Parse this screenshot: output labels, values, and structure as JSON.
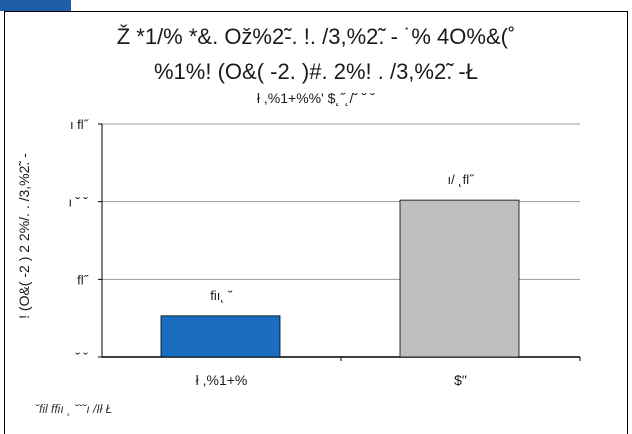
{
  "header": {
    "tab_color": "#1f5fa8"
  },
  "chart_data": {
    "type": "bar",
    "title": "Ž *1/%  *&. Ož%2̃-. !. /3,%2̃. - ˙% 4O%&(˚",
    "subtitle": "%1%! (O&( -2. )#. 2%! . /3,%2̃. -Ł",
    "subtitle2": "ł ,%1+%%' $˛˝˛/˘ ˘ ˘",
    "ylabel": "! (O&( -2 ) 2 2%/. . /3,%2̃. -",
    "ytick_labels": [
      "˘ ˘",
      "fl˝",
      "ı ˘ ˘",
      "ı fl˝"
    ],
    "ylim": [
      0,
      150
    ],
    "yticks": [
      0,
      50,
      100,
      150
    ],
    "categories": [
      "ł ,%1+%",
      "$\""
    ],
    "values": [
      26.5,
      101
    ],
    "value_labels": [
      "fiı˛ ˘",
      "ı/ ˛fl˝"
    ],
    "colors": [
      "#1a6dbf",
      "#bfbfbf"
    ],
    "grid": true,
    "footnote": "˘fil ffiı ˛ ˘˘˘ı /Ił Ł"
  }
}
